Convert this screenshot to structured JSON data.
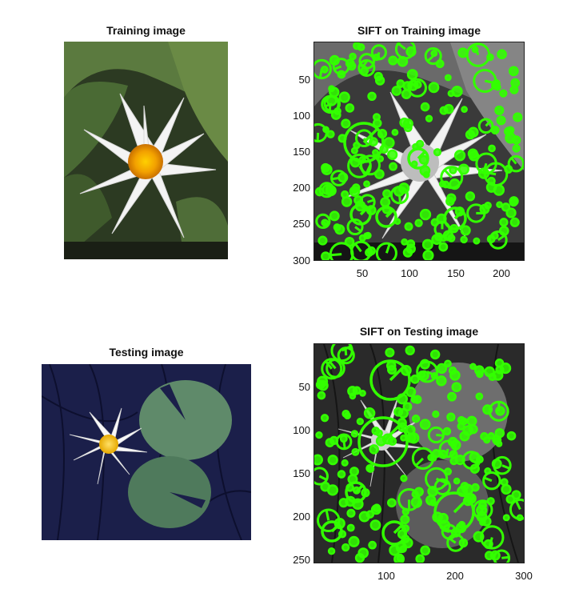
{
  "panels": {
    "training": {
      "title": "Training image"
    },
    "sift_training": {
      "title": "SIFT on Training image",
      "yticks": [
        "50",
        "100",
        "150",
        "200",
        "250",
        "300"
      ],
      "xticks": [
        "50",
        "100",
        "150",
        "200"
      ]
    },
    "testing": {
      "title": "Testing image"
    },
    "sift_testing": {
      "title": "SIFT on Testing image",
      "yticks": [
        "50",
        "100",
        "150",
        "200",
        "250"
      ],
      "xticks": [
        "100",
        "200",
        "300"
      ]
    }
  },
  "colors": {
    "keypoint": "#33ff00"
  }
}
